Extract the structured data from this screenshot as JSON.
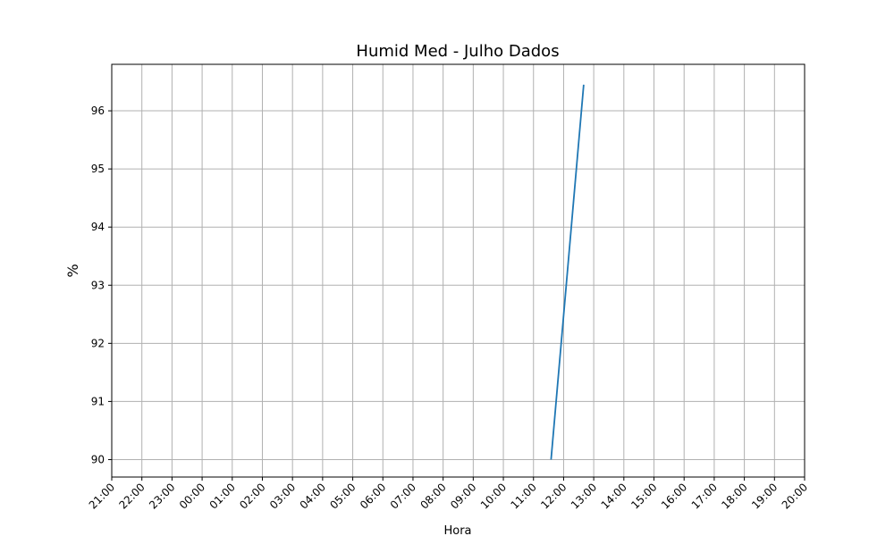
{
  "chart_data": {
    "type": "line",
    "title": "Humid Med - Julho Dados",
    "xlabel": "Hora",
    "ylabel": "%",
    "x_tick_labels": [
      "21:00",
      "22:00",
      "23:00",
      "00:00",
      "01:00",
      "02:00",
      "03:00",
      "04:00",
      "05:00",
      "06:00",
      "07:00",
      "08:00",
      "09:00",
      "10:00",
      "11:00",
      "12:00",
      "13:00",
      "14:00",
      "15:00",
      "16:00",
      "17:00",
      "18:00",
      "19:00",
      "20:00"
    ],
    "y_ticks": [
      90,
      91,
      92,
      93,
      94,
      95,
      96
    ],
    "ylim": [
      89.7,
      96.8
    ],
    "xlim": [
      "21:00",
      "20:00"
    ],
    "grid": true,
    "series": [
      {
        "color": "#1f77b4",
        "x": [
          "11:35",
          "12:40"
        ],
        "y": [
          90.0,
          96.45
        ]
      }
    ]
  }
}
